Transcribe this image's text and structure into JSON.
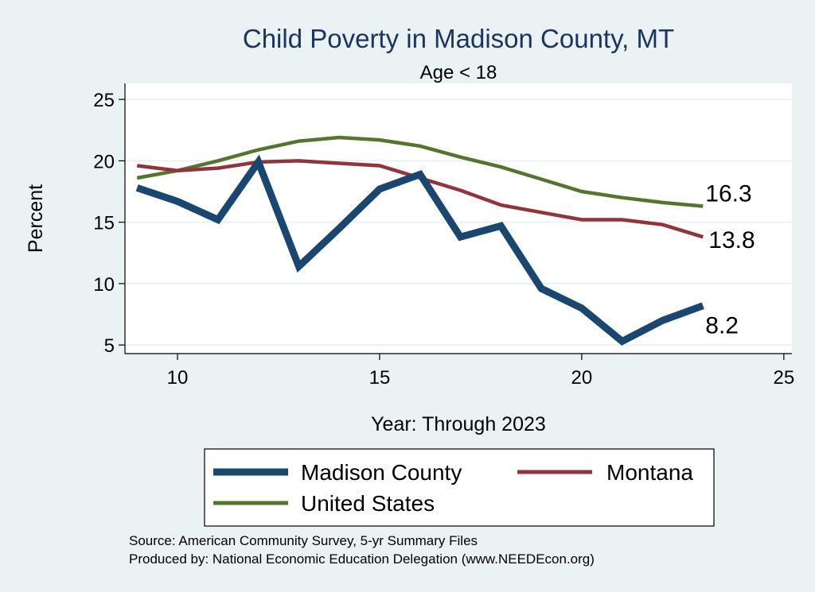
{
  "chart_data": {
    "type": "line",
    "title": "Child Poverty in Madison County, MT",
    "subtitle": "Age < 18",
    "xlabel": "Year: Through 2023",
    "ylabel": "Percent",
    "xlim": [
      8.7,
      25.2
    ],
    "ylim": [
      4.3,
      26.3
    ],
    "xticks": [
      10,
      15,
      20,
      25
    ],
    "yticks": [
      5,
      10,
      15,
      20,
      25
    ],
    "x": [
      9,
      10,
      11,
      12,
      13,
      14,
      15,
      16,
      17,
      18,
      19,
      20,
      21,
      22,
      23
    ],
    "series": [
      {
        "name": "Madison County",
        "color": "#1a476f",
        "values": [
          17.8,
          16.7,
          15.2,
          19.9,
          11.4,
          14.5,
          17.7,
          18.9,
          13.8,
          14.7,
          9.6,
          8.0,
          5.3,
          7.0,
          8.2
        ],
        "end_label": "8.2"
      },
      {
        "name": "Montana",
        "color": "#90353b",
        "values": [
          19.6,
          19.2,
          19.4,
          19.9,
          20.0,
          19.8,
          19.6,
          18.6,
          17.6,
          16.4,
          15.8,
          15.2,
          15.2,
          14.8,
          13.8
        ],
        "end_label": "13.8"
      },
      {
        "name": "United States",
        "color": "#55752f",
        "values": [
          18.6,
          19.2,
          20.0,
          20.9,
          21.6,
          21.9,
          21.7,
          21.2,
          20.3,
          19.5,
          18.5,
          17.5,
          17.0,
          16.6,
          16.3
        ],
        "end_label": "16.3"
      }
    ],
    "legend": {
      "placement": "bottom"
    },
    "grid": true,
    "source_lines": [
      "Source: American Community Survey, 5-yr Summary Files",
      "Produced by: National Economic Education Delegation (www.NEEDEcon.org)"
    ]
  }
}
